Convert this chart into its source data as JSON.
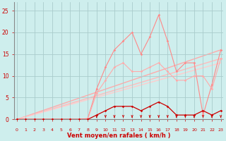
{
  "x": [
    0,
    1,
    2,
    3,
    4,
    5,
    6,
    7,
    8,
    9,
    10,
    11,
    12,
    13,
    14,
    15,
    16,
    17,
    18,
    19,
    20,
    21,
    22,
    23
  ],
  "line1": [
    0,
    0,
    0,
    0,
    0,
    0,
    0,
    0,
    0.2,
    7,
    12,
    16,
    18,
    20,
    15,
    19,
    24,
    18,
    11,
    13,
    13,
    1,
    8,
    16
  ],
  "line2": [
    0,
    0,
    0,
    0,
    0,
    0,
    0,
    0,
    0.1,
    6,
    9,
    12,
    13,
    11,
    11,
    12,
    13,
    11,
    9,
    9,
    10,
    10,
    7,
    14
  ],
  "line3": [
    0,
    0,
    0,
    0,
    0,
    0,
    0,
    0,
    0,
    1,
    2,
    3,
    3,
    3,
    2,
    3,
    4,
    3,
    1,
    1,
    1,
    2,
    1,
    2
  ],
  "trend_slopes": [
    0.695,
    0.608,
    0.565
  ],
  "trend_colors": [
    "#ffaaaa",
    "#ffbbbb",
    "#ffcccc"
  ],
  "bg_color": "#ceeeed",
  "grid_color": "#aacccc",
  "line1_color": "#ff8888",
  "line2_color": "#ffaaaa",
  "line3_color": "#cc0000",
  "arrow_color": "#cc0000",
  "xlabel": "Vent moyen/en rafales ( km/h )",
  "ylabel_ticks": [
    0,
    5,
    10,
    15,
    20,
    25
  ],
  "xticks": [
    0,
    1,
    2,
    3,
    4,
    5,
    6,
    7,
    8,
    9,
    10,
    11,
    12,
    13,
    14,
    15,
    16,
    17,
    18,
    19,
    20,
    21,
    22,
    23
  ],
  "xlim": [
    -0.3,
    23.3
  ],
  "ylim": [
    0,
    27
  ],
  "xlabel_color": "#cc0000",
  "tick_color": "#cc0000"
}
